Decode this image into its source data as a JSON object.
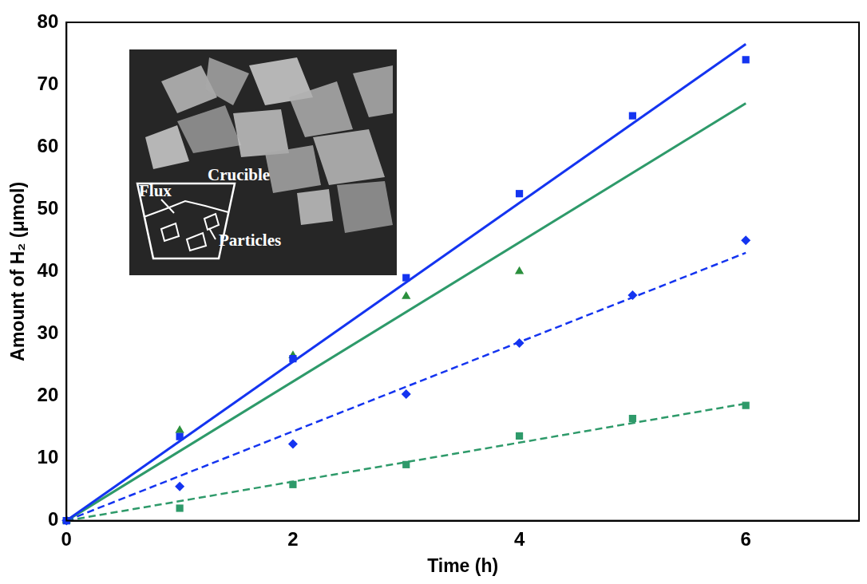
{
  "chart_data": {
    "type": "scatter",
    "x_label": "Time (h)",
    "y_label": "Amount of H₂ (μmol)",
    "xlim": [
      0,
      7
    ],
    "xticks": [
      0,
      2,
      4,
      6
    ],
    "ylim": [
      0,
      80
    ],
    "yticks": [
      0,
      10,
      20,
      30,
      40,
      50,
      60,
      70,
      80
    ],
    "grid": false,
    "annotations": [
      "Crucible",
      "Flux",
      "Particles"
    ],
    "series": [
      {
        "type": "scatter",
        "marker": "square",
        "color": "#1434f0",
        "x": [
          0,
          1,
          2,
          3,
          4,
          5,
          6
        ],
        "values": [
          0,
          13.5,
          26,
          39,
          52.5,
          65,
          74
        ]
      },
      {
        "type": "scatter",
        "marker": "triangle",
        "color": "#2a8f3c",
        "x": [
          0,
          1,
          2,
          3,
          4
        ],
        "values": [
          0,
          14.5,
          26.5,
          36,
          40
        ]
      },
      {
        "type": "scatter",
        "marker": "diamond",
        "color": "#1434f0",
        "x": [
          0,
          1,
          2,
          3,
          4,
          5,
          6
        ],
        "values": [
          0,
          5.5,
          12.3,
          20.3,
          28.5,
          36.2,
          45
        ]
      },
      {
        "type": "scatter",
        "marker": "square",
        "color": "#2e9a6a",
        "x": [
          0,
          1,
          2,
          3,
          4,
          5,
          6
        ],
        "values": [
          0,
          2,
          5.8,
          9,
          13.6,
          16.4,
          18.5
        ]
      },
      {
        "type": "line",
        "line_style": "solid",
        "color": "#1434f0",
        "x": [
          0,
          6
        ],
        "values": [
          0,
          76.5
        ]
      },
      {
        "type": "line",
        "line_style": "solid",
        "color": "#2e9a6a",
        "x": [
          0,
          6
        ],
        "values": [
          0,
          67
        ]
      },
      {
        "type": "line",
        "line_style": "dashed",
        "color": "#1434f0",
        "x": [
          0,
          6
        ],
        "values": [
          0,
          43
        ]
      },
      {
        "type": "line",
        "line_style": "dashed",
        "color": "#2e9a6a",
        "x": [
          0,
          6
        ],
        "values": [
          0,
          18.8
        ]
      }
    ]
  }
}
